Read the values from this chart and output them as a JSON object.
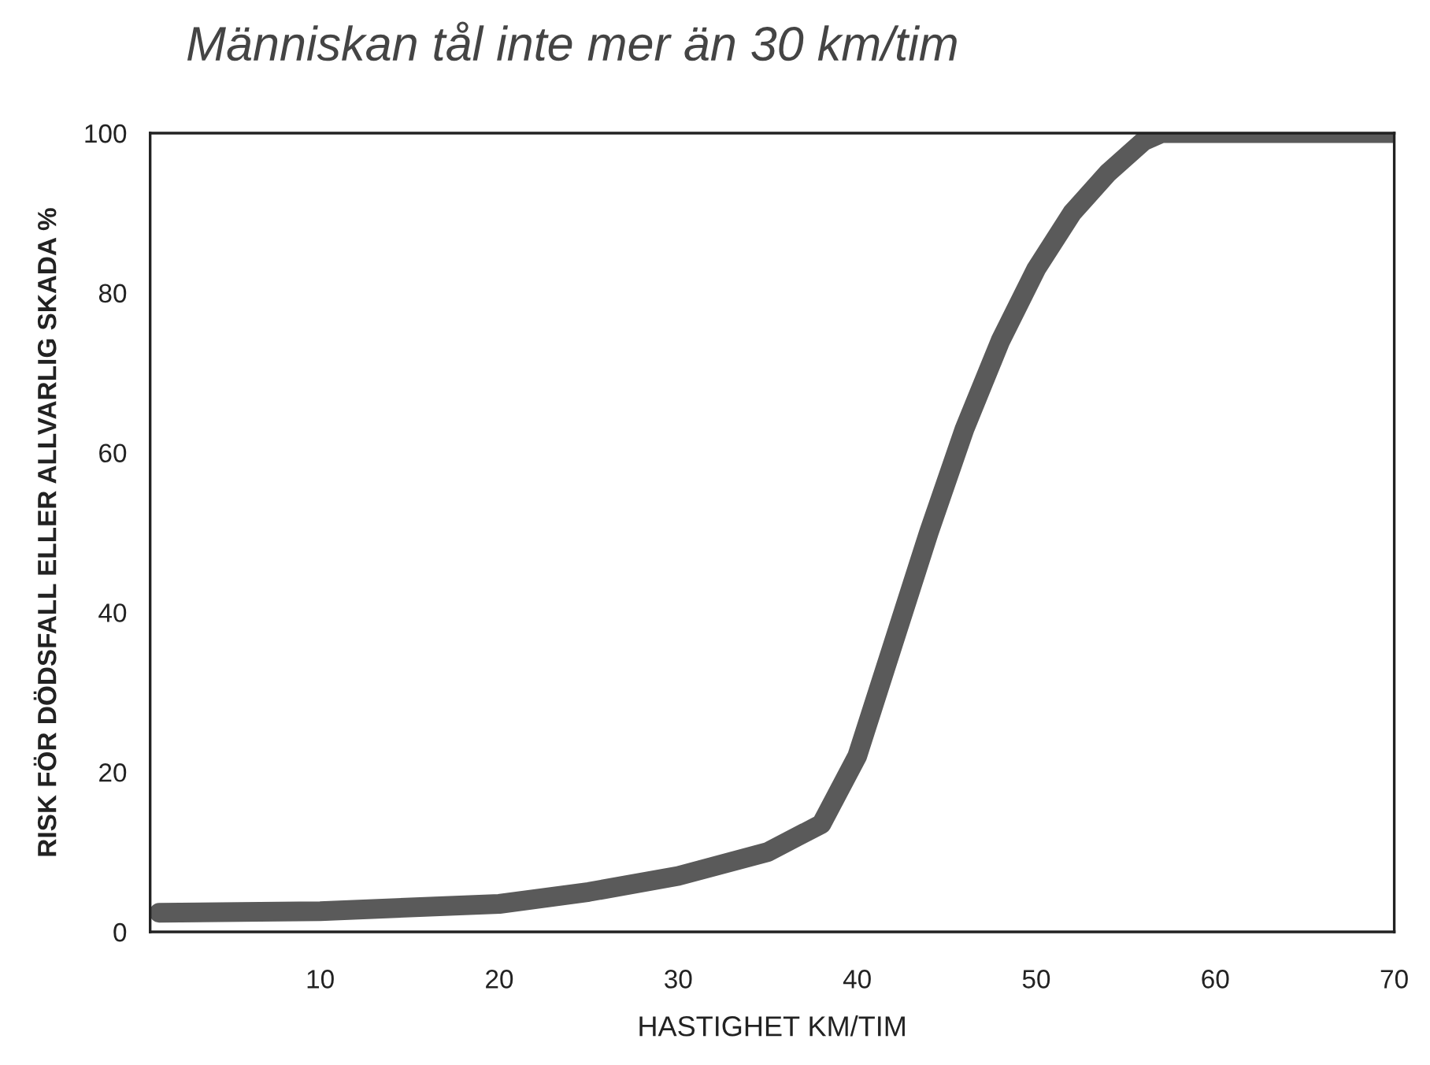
{
  "chart_data": {
    "type": "line",
    "title": "Människan tål inte mer än 30 km/tim",
    "xlabel": "HASTIGHET KM/TIM",
    "ylabel": "RISK FÖR DÖDSFALL ELLER ALLVARLIG SKADA %",
    "x": [
      1,
      10,
      20,
      25,
      30,
      35,
      38,
      40,
      42,
      44,
      46,
      48,
      50,
      52,
      54,
      56,
      57,
      70
    ],
    "series": [
      {
        "color": "#5a5a5a",
        "values": [
          2.4,
          2.6,
          3.5,
          5,
          7,
          10,
          13.5,
          22,
          36,
          50,
          63,
          74,
          83,
          90,
          95,
          99,
          100,
          100
        ]
      }
    ],
    "xlim": [
      0.5,
      70
    ],
    "ylim": [
      0,
      100
    ],
    "xticks": [
      10,
      20,
      30,
      40,
      50,
      60,
      70
    ],
    "yticks": [
      0,
      20,
      40,
      60,
      80,
      100
    ],
    "grid": false,
    "legend": false,
    "marker": "none",
    "line_style": "solid"
  }
}
